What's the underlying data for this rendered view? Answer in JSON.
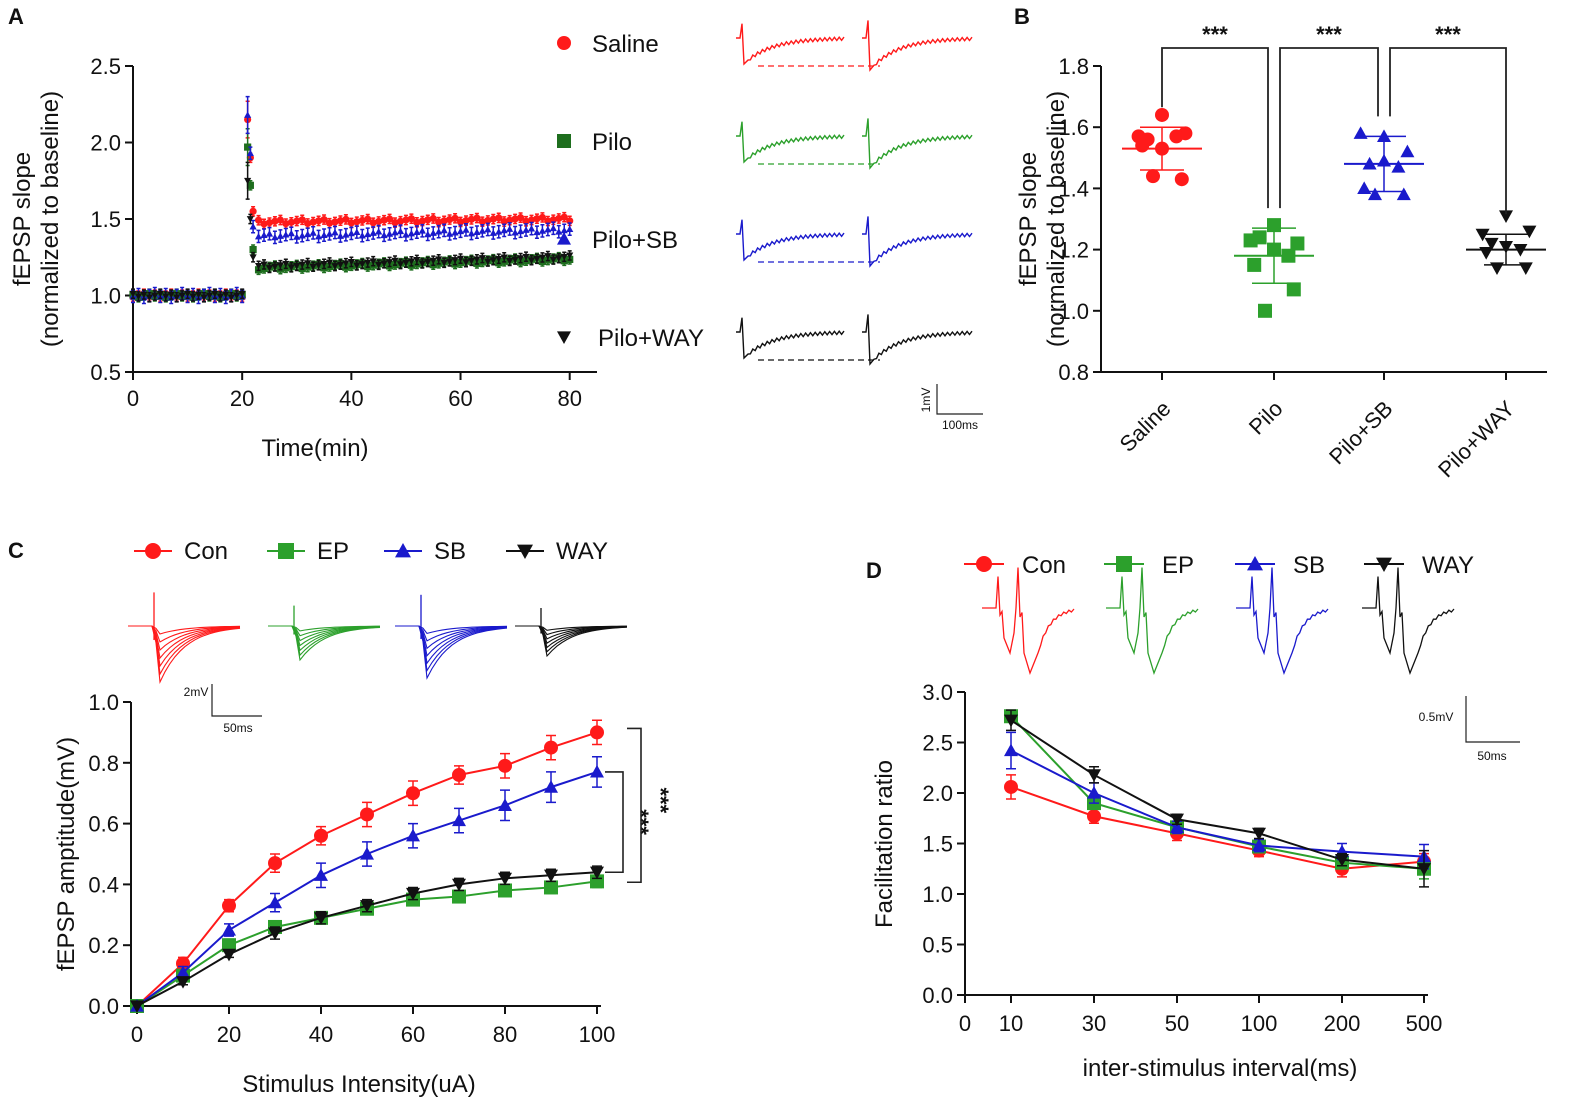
{
  "chart_data": [
    {
      "panel": "A",
      "type": "scatter",
      "title": "",
      "xlabel": "Time(min)",
      "ylabel": "fEPSP slope",
      "ylabel_sub": "(normalized to baseline)",
      "xlim": [
        0,
        85
      ],
      "ylim": [
        0.5,
        2.5
      ],
      "xticks": [
        0,
        20,
        40,
        60,
        80
      ],
      "yticks": [
        0.5,
        1.0,
        1.5,
        2.0,
        2.5
      ],
      "ytick_labels": [
        "0.5",
        "1.0",
        "1.5",
        "2.0",
        "2.5"
      ],
      "baseline": 1.0,
      "series": [
        {
          "name": "Saline",
          "color": "#ff1a1a",
          "marker": "circle",
          "tetanus_peak": 2.15,
          "post_first": 1.55,
          "plateau": 1.48,
          "end": 1.5,
          "err": 0.03
        },
        {
          "name": "Pilo",
          "color": "#1e6e1e",
          "marker": "square",
          "tetanus_peak": 1.97,
          "post_first": 1.3,
          "plateau": 1.18,
          "end": 1.24,
          "err": 0.03
        },
        {
          "name": "Pilo+SB",
          "color": "#1a1acc",
          "marker": "triangle",
          "tetanus_peak": 2.18,
          "post_first": 1.45,
          "plateau": 1.39,
          "end": 1.43,
          "err": 0.04
        },
        {
          "name": "Pilo+WAY",
          "color": "#111111",
          "marker": "triangle-down",
          "tetanus_peak": 1.75,
          "post_first": 1.25,
          "plateau": 1.19,
          "end": 1.25,
          "err": 0.03
        }
      ],
      "scale_bar": {
        "y_label": "1mV",
        "x_label": "100ms"
      }
    },
    {
      "panel": "B",
      "type": "scatter",
      "title": "",
      "xlabel": "",
      "ylabel": "fEPSP slope",
      "ylabel_sub": "(normalized to baseline)",
      "ylim": [
        0.8,
        1.8
      ],
      "yticks": [
        0.8,
        1.0,
        1.2,
        1.4,
        1.6,
        1.8
      ],
      "ytick_labels": [
        "0.8",
        "1.0",
        "1.2",
        "1.4",
        "1.6",
        "1.8"
      ],
      "categories": [
        "Saline",
        "Pilo",
        "Pilo+SB",
        "Pilo+WAY"
      ],
      "groups": [
        {
          "name": "Saline",
          "color": "#ff1a1a",
          "marker": "circle",
          "mean": 1.53,
          "sd": 0.07,
          "points": [
            1.64,
            1.57,
            1.58,
            1.56,
            1.53,
            1.57,
            1.54,
            1.43,
            1.44
          ]
        },
        {
          "name": "Pilo",
          "color": "#2ca02c",
          "marker": "square",
          "mean": 1.18,
          "sd": 0.09,
          "points": [
            1.28,
            1.23,
            1.22,
            1.24,
            1.2,
            1.18,
            1.15,
            1.07,
            1.0
          ]
        },
        {
          "name": "Pilo+SB",
          "color": "#1a1acc",
          "marker": "triangle",
          "mean": 1.48,
          "sd": 0.09,
          "points": [
            1.57,
            1.58,
            1.52,
            1.48,
            1.49,
            1.47,
            1.4,
            1.38,
            1.38
          ]
        },
        {
          "name": "Pilo+WAY",
          "color": "#111111",
          "marker": "triangle-down",
          "mean": 1.2,
          "sd": 0.05,
          "points": [
            1.31,
            1.25,
            1.26,
            1.22,
            1.21,
            1.2,
            1.19,
            1.14,
            1.14
          ]
        }
      ],
      "significance": [
        {
          "from": "Saline",
          "to": "Pilo",
          "label": "***"
        },
        {
          "from": "Pilo",
          "to": "Pilo+SB",
          "label": "***"
        },
        {
          "from": "Pilo+SB",
          "to": "Pilo+WAY",
          "label": "***"
        }
      ]
    },
    {
      "panel": "C",
      "type": "line",
      "title": "",
      "xlabel": "Stimulus Intensity(uA)",
      "ylabel": "fEPSP amptitude(mV)",
      "xlim": [
        0,
        100
      ],
      "ylim": [
        0.0,
        1.0
      ],
      "xticks": [
        0,
        20,
        40,
        60,
        80,
        100
      ],
      "yticks": [
        0.0,
        0.2,
        0.4,
        0.6,
        0.8,
        1.0
      ],
      "ytick_labels": [
        "0.0",
        "0.2",
        "0.4",
        "0.6",
        "0.8",
        "1.0"
      ],
      "x": [
        0,
        10,
        20,
        30,
        40,
        50,
        60,
        70,
        80,
        90,
        100
      ],
      "series": [
        {
          "name": "Con",
          "color": "#ff1a1a",
          "marker": "circle",
          "values": [
            0.0,
            0.14,
            0.33,
            0.47,
            0.56,
            0.63,
            0.7,
            0.76,
            0.79,
            0.85,
            0.9
          ],
          "err": [
            0.0,
            0.02,
            0.02,
            0.03,
            0.03,
            0.04,
            0.04,
            0.03,
            0.04,
            0.04,
            0.04
          ]
        },
        {
          "name": "EP",
          "color": "#2ca02c",
          "marker": "square",
          "values": [
            0.0,
            0.1,
            0.2,
            0.26,
            0.29,
            0.32,
            0.35,
            0.36,
            0.38,
            0.39,
            0.41
          ],
          "err": [
            0.0,
            0.01,
            0.02,
            0.02,
            0.02,
            0.02,
            0.02,
            0.02,
            0.02,
            0.02,
            0.02
          ]
        },
        {
          "name": "SB",
          "color": "#1a1acc",
          "marker": "triangle",
          "values": [
            0.0,
            0.11,
            0.25,
            0.34,
            0.43,
            0.5,
            0.56,
            0.61,
            0.66,
            0.72,
            0.77
          ],
          "err": [
            0.0,
            0.02,
            0.02,
            0.03,
            0.04,
            0.04,
            0.04,
            0.04,
            0.05,
            0.05,
            0.05
          ]
        },
        {
          "name": "WAY",
          "color": "#111111",
          "marker": "triangle-down",
          "values": [
            0.0,
            0.08,
            0.17,
            0.24,
            0.29,
            0.33,
            0.37,
            0.4,
            0.42,
            0.43,
            0.44
          ],
          "err": [
            0.0,
            0.01,
            0.01,
            0.02,
            0.02,
            0.02,
            0.02,
            0.02,
            0.02,
            0.02,
            0.02
          ]
        }
      ],
      "significance": [
        {
          "from": "SB",
          "to": "WAY",
          "label": "***"
        },
        {
          "from": "Con",
          "to": "WAY",
          "label": "***"
        }
      ],
      "scale_bar": {
        "y_label": "2mV",
        "x_label": "50ms"
      }
    },
    {
      "panel": "D",
      "type": "line",
      "title": "",
      "xlabel": "inter-stimulus interval(ms)",
      "ylabel": "Facilitation ratio",
      "ylim": [
        0.0,
        3.0
      ],
      "categories": [
        "0",
        "10",
        "30",
        "50",
        "100",
        "200",
        "500"
      ],
      "yticks": [
        0.0,
        0.5,
        1.0,
        1.5,
        2.0,
        2.5,
        3.0
      ],
      "ytick_labels": [
        "0.0",
        "0.5",
        "1.0",
        "1.5",
        "2.0",
        "2.5",
        "3.0"
      ],
      "x": [
        "10",
        "30",
        "50",
        "100",
        "200",
        "500"
      ],
      "series": [
        {
          "name": "Con",
          "color": "#ff1a1a",
          "marker": "circle",
          "values": [
            2.06,
            1.77,
            1.6,
            1.43,
            1.25,
            1.32
          ],
          "err": [
            0.12,
            0.07,
            0.07,
            0.06,
            0.08,
            0.08
          ]
        },
        {
          "name": "EP",
          "color": "#2ca02c",
          "marker": "square",
          "values": [
            2.76,
            1.9,
            1.66,
            1.47,
            1.31,
            1.25
          ],
          "err": [
            0.05,
            0.06,
            0.06,
            0.05,
            0.06,
            0.1
          ]
        },
        {
          "name": "SB",
          "color": "#1a1acc",
          "marker": "triangle",
          "values": [
            2.42,
            2.0,
            1.66,
            1.48,
            1.42,
            1.37
          ],
          "err": [
            0.18,
            0.1,
            0.06,
            0.06,
            0.08,
            0.12
          ]
        },
        {
          "name": "WAY",
          "color": "#111111",
          "marker": "triangle-down",
          "values": [
            2.72,
            2.18,
            1.74,
            1.6,
            1.34,
            1.25
          ],
          "err": [
            0.1,
            0.08,
            0.05,
            0.05,
            0.06,
            0.18
          ]
        }
      ],
      "scale_bar": {
        "y_label": "0.5mV",
        "x_label": "50ms"
      }
    }
  ]
}
